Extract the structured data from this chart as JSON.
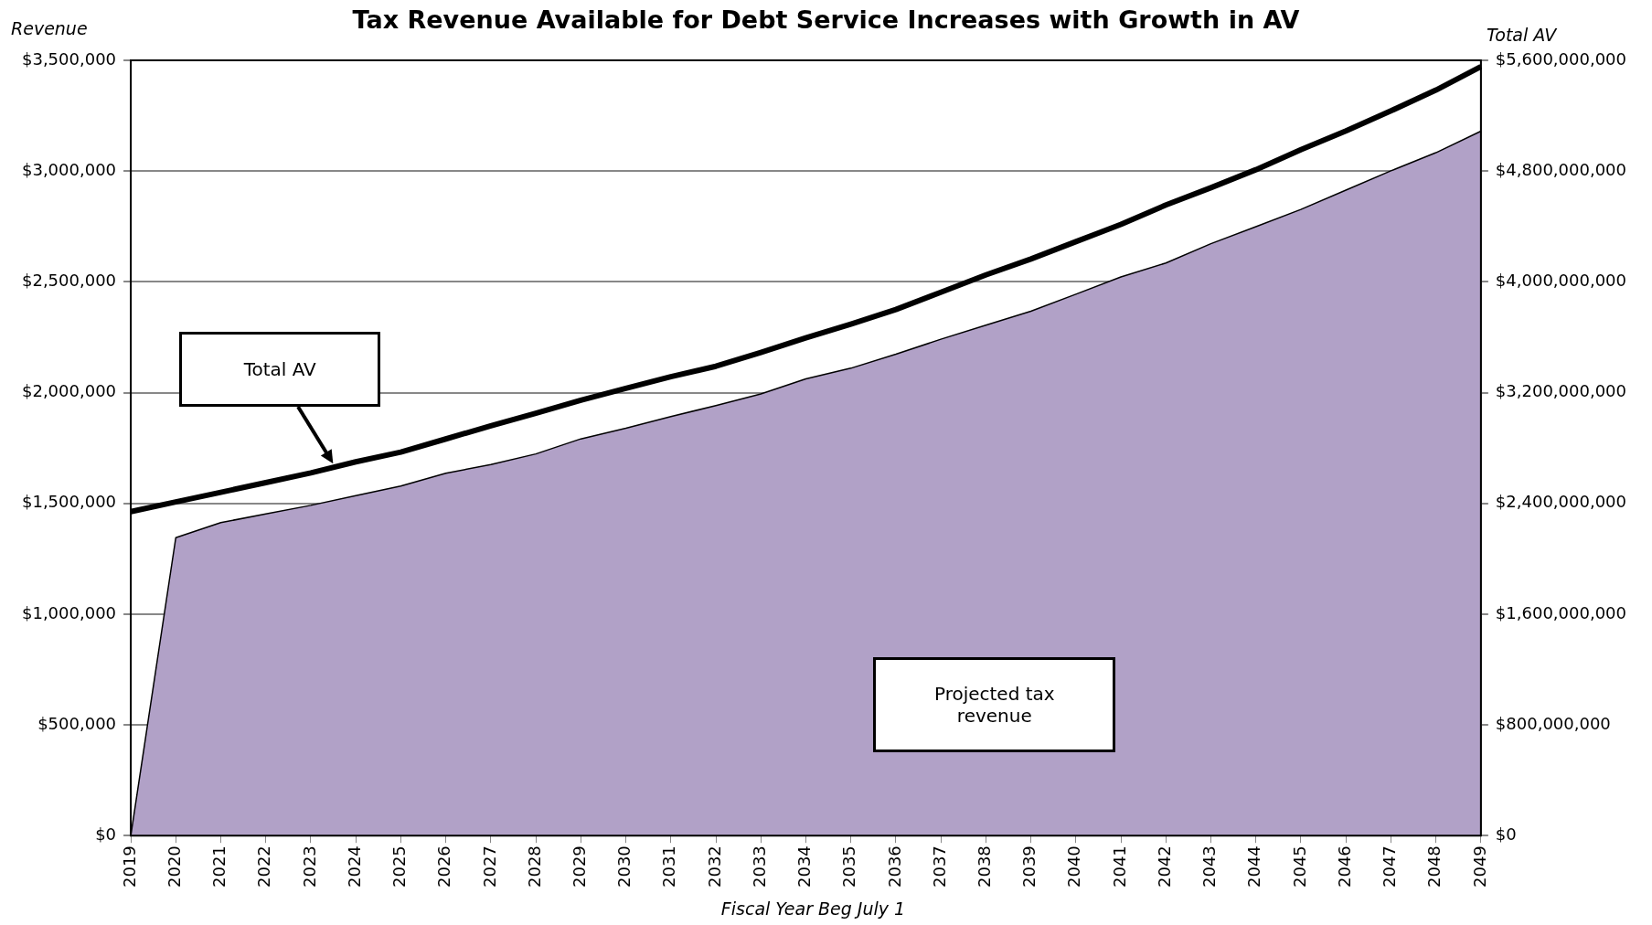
{
  "chart_data": {
    "type": "area",
    "title": "Tax Revenue Available for Debt Service Increases with Growth in AV",
    "xlabel": "Fiscal Year Beg July 1",
    "ylabel": "Revenue",
    "y2label": "Total AV",
    "annotations": [
      "Total AV",
      "Projected tax revenue"
    ],
    "categories": [
      "2019",
      "2020",
      "2021",
      "2022",
      "2023",
      "2024",
      "2025",
      "2026",
      "2027",
      "2028",
      "2029",
      "2030",
      "2031",
      "2032",
      "2033",
      "2034",
      "2035",
      "2036",
      "2037",
      "2038",
      "2039",
      "2040",
      "2041",
      "2042",
      "2043",
      "2044",
      "2045",
      "2046",
      "2047",
      "2048",
      "2049"
    ],
    "series": [
      {
        "type": "area",
        "color": "#b1a1c7",
        "values": [
          0,
          1345000,
          1413000,
          1452000,
          1491000,
          1535000,
          1578000,
          1636000,
          1675000,
          1723000,
          1791000,
          1839000,
          1892000,
          1941000,
          1994000,
          2062000,
          2110000,
          2173000,
          2241000,
          2304000,
          2367000,
          2444000,
          2522000,
          2585000,
          2672000,
          2749000,
          2827000,
          2914000,
          3001000,
          3083000,
          3180000
        ]
      },
      {
        "type": "line",
        "axis": "y2",
        "color": "#000000",
        "values": [
          2340000000,
          2410000000,
          2480000000,
          2550000000,
          2620000000,
          2700000000,
          2770000000,
          2865000000,
          2960000000,
          3050000000,
          3145000000,
          3230000000,
          3315000000,
          3390000000,
          3490000000,
          3595000000,
          3695000000,
          3800000000,
          3925000000,
          4050000000,
          4165000000,
          4290000000,
          4415000000,
          4555000000,
          4680000000,
          4810000000,
          4955000000,
          5090000000,
          5235000000,
          5385000000,
          5555000000
        ]
      }
    ],
    "ylim": [
      0,
      3500000
    ],
    "yticks": [
      {
        "value": 0,
        "label": "$0"
      },
      {
        "value": 500000,
        "label": "$500,000"
      },
      {
        "value": 1000000,
        "label": "$1,000,000"
      },
      {
        "value": 1500000,
        "label": "$1,500,000"
      },
      {
        "value": 2000000,
        "label": "$2,000,000"
      },
      {
        "value": 2500000,
        "label": "$2,500,000"
      },
      {
        "value": 3000000,
        "label": "$3,000,000"
      },
      {
        "value": 3500000,
        "label": "$3,500,000"
      }
    ],
    "y2lim": [
      0,
      5600000000
    ],
    "y2ticks": [
      {
        "value": 0,
        "label": "$0"
      },
      {
        "value": 800000000,
        "label": "$800,000,000"
      },
      {
        "value": 1600000000,
        "label": "$1,600,000,000"
      },
      {
        "value": 2400000000,
        "label": "$2,400,000,000"
      },
      {
        "value": 3200000000,
        "label": "$3,200,000,000"
      },
      {
        "value": 4000000000,
        "label": "$4,000,000,000"
      },
      {
        "value": 4800000000,
        "label": "$4,800,000,000"
      },
      {
        "value": 5600000000,
        "label": "$5,600,000,000"
      }
    ],
    "grid": "y",
    "legend": false
  }
}
